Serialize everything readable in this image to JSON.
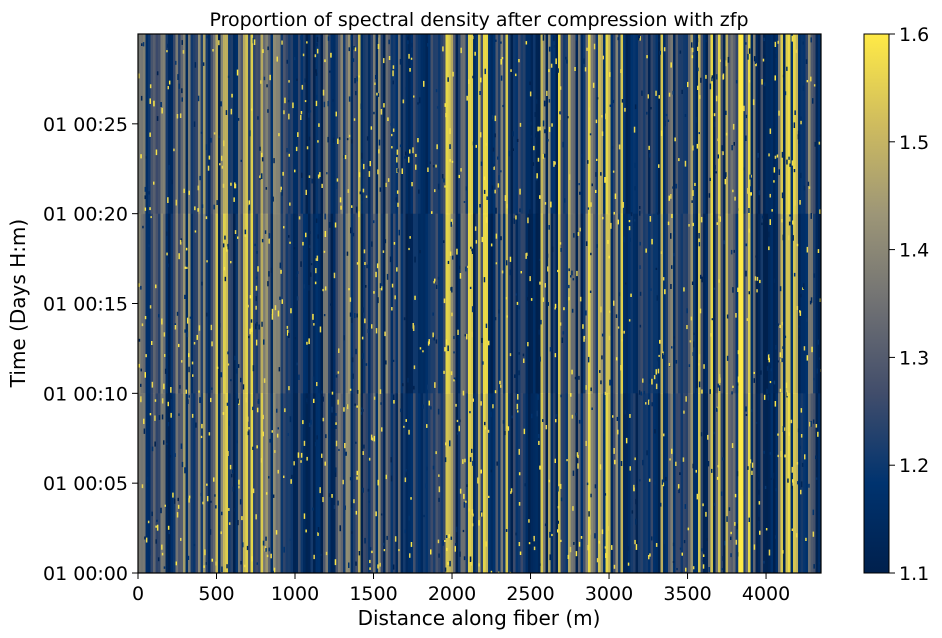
{
  "chart_data": {
    "type": "heatmap",
    "title": "Proportion of spectral density after compression with zfp",
    "xlabel": "Distance along fiber (m)",
    "ylabel": "Time (Days H:m)",
    "xlim": [
      0,
      4350
    ],
    "ylim_minutes": [
      0,
      30
    ],
    "x_ticks": [
      0,
      500,
      1000,
      1500,
      2000,
      2500,
      3000,
      3500,
      4000
    ],
    "y_ticks": [
      {
        "minutes": 0,
        "label": "01 00:00"
      },
      {
        "minutes": 5,
        "label": "01 00:05"
      },
      {
        "minutes": 10,
        "label": "01 00:10"
      },
      {
        "minutes": 15,
        "label": "01 00:15"
      },
      {
        "minutes": 20,
        "label": "01 00:20"
      },
      {
        "minutes": 25,
        "label": "01 00:25"
      }
    ],
    "colorbar": {
      "colormap": "cividis",
      "min": 1.1,
      "max": 1.6,
      "ticks": [
        1.1,
        1.2,
        1.3,
        1.4,
        1.5,
        1.6
      ],
      "colors": [
        "#00204d",
        "#00336f",
        "#414d6b",
        "#707173",
        "#9d9677",
        "#cfbc5e",
        "#ffea46"
      ]
    },
    "bright_band_distances": [
      3840
    ]
  }
}
